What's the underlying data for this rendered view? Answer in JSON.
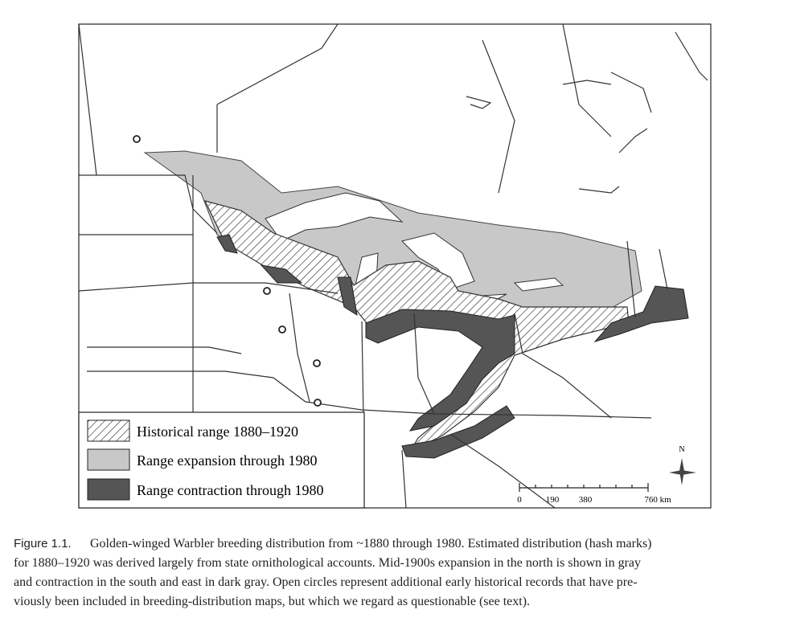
{
  "legend": {
    "items": [
      {
        "label": "Historical range 1880–1920"
      },
      {
        "label": "Range expansion through 1980"
      },
      {
        "label": "Range contraction through 1980"
      }
    ]
  },
  "scale_bar": {
    "labels": [
      "0",
      "190",
      "380",
      "760 km"
    ]
  },
  "compass": {
    "label": "N"
  },
  "caption": {
    "label": "Figure 1.1.",
    "lines": [
      "Golden-winged Warbler breeding distribution from ~1880 through 1980. Estimated distribution (hash marks)",
      "for 1880–1920 was derived largely from state ornithological accounts. Mid-1900s expansion in the north is shown in gray",
      "and contraction in the south and east in dark gray. Open circles represent additional early historical records that have pre-",
      "viously been included in breeding-distribution maps, but which we regard as questionable (see text)."
    ]
  }
}
